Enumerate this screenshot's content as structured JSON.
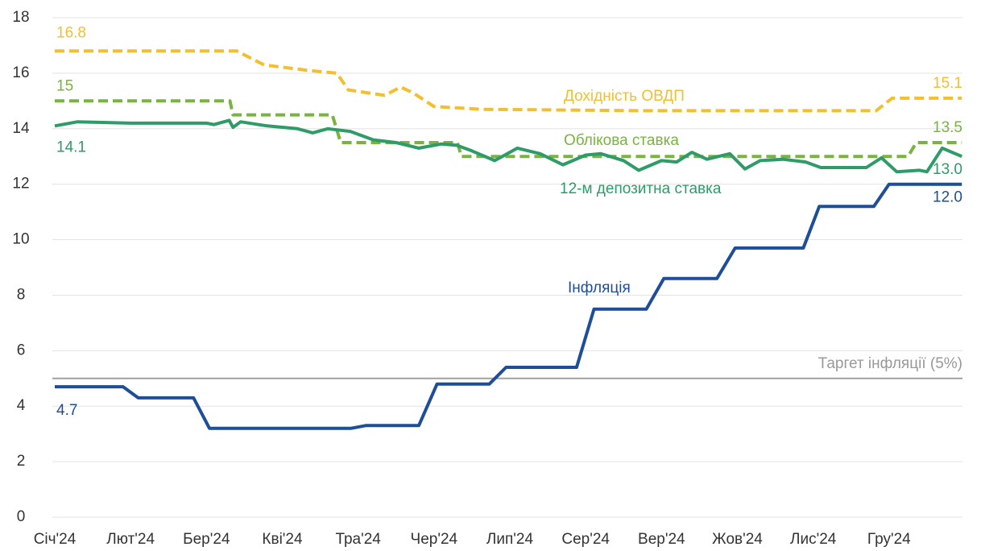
{
  "chart_data": {
    "type": "line",
    "xticks": [
      {
        "value": 0,
        "label": "Січ'24"
      },
      {
        "value": 1,
        "label": "Лют'24"
      },
      {
        "value": 2,
        "label": "Бер'24"
      },
      {
        "value": 3,
        "label": "Кві'24"
      },
      {
        "value": 4,
        "label": "Тра'24"
      },
      {
        "value": 5,
        "label": "Чер'24"
      },
      {
        "value": 6,
        "label": "Лип'24"
      },
      {
        "value": 7,
        "label": "Сер'24"
      },
      {
        "value": 8,
        "label": "Вер'24"
      },
      {
        "value": 9,
        "label": "Жов'24"
      },
      {
        "value": 10,
        "label": "Лис'24"
      },
      {
        "value": 11,
        "label": "Гру'24"
      }
    ],
    "xlim": [
      0,
      12
    ],
    "ylim": [
      0,
      18
    ],
    "yticks": [
      0,
      2,
      4,
      6,
      8,
      10,
      12,
      14,
      16,
      18
    ],
    "grid": true,
    "reference_line": {
      "label": "Таргет інфляції (5%)",
      "value": 5,
      "color": "#a0a0a0"
    },
    "series": [
      {
        "name": "Дохідність ОВДП",
        "color": "#f2bf30",
        "dash": true,
        "x": [
          0,
          2.4,
          2.76,
          3.34,
          3.72,
          3.87,
          4.35,
          4.56,
          4.72,
          5.0,
          5.63,
          7.75,
          10.83,
          11.04,
          11.96
        ],
        "values": [
          16.8,
          16.8,
          16.3,
          16.1,
          16.0,
          15.4,
          15.2,
          15.5,
          15.3,
          14.8,
          14.7,
          14.65,
          14.65,
          15.1,
          15.1
        ],
        "value_labels": [
          "16.8",
          null,
          null,
          null,
          null,
          null,
          null,
          null,
          null,
          null,
          null,
          null,
          null,
          null,
          "15.1"
        ]
      },
      {
        "name": "Облікова ставка",
        "color": "#7ab340",
        "dash": true,
        "x": [
          0,
          2.31,
          2.35,
          3.66,
          3.77,
          5.31,
          5.36,
          11.25,
          11.36,
          11.96
        ],
        "values": [
          15,
          15,
          14.5,
          14.5,
          13.5,
          13.5,
          13.0,
          13.0,
          13.5,
          13.5
        ],
        "value_labels": [
          "15",
          null,
          null,
          null,
          null,
          null,
          null,
          null,
          null,
          "13.5"
        ]
      },
      {
        "name": "12-м депозитна ставка",
        "color": "#2f9b68",
        "dash": false,
        "x": [
          0,
          0.3,
          1.0,
          2.0,
          2.1,
          2.3,
          2.35,
          2.45,
          2.8,
          3.2,
          3.4,
          3.6,
          3.9,
          4.2,
          4.5,
          4.8,
          5.1,
          5.3,
          5.5,
          5.8,
          6.1,
          6.4,
          6.7,
          7.0,
          7.2,
          7.5,
          7.7,
          8.0,
          8.2,
          8.4,
          8.6,
          8.9,
          9.1,
          9.3,
          9.6,
          9.9,
          10.1,
          10.5,
          10.7,
          10.9,
          11.1,
          11.4,
          11.5,
          11.7,
          11.96
        ],
        "values": [
          14.1,
          14.25,
          14.2,
          14.2,
          14.15,
          14.3,
          14.05,
          14.25,
          14.1,
          14.0,
          13.85,
          14.0,
          13.9,
          13.6,
          13.5,
          13.3,
          13.45,
          13.4,
          13.2,
          12.85,
          13.3,
          13.1,
          12.7,
          13.05,
          13.1,
          12.85,
          12.5,
          12.85,
          12.8,
          13.15,
          12.9,
          13.1,
          12.55,
          12.85,
          12.9,
          12.8,
          12.6,
          12.6,
          12.6,
          12.95,
          12.45,
          12.5,
          12.45,
          13.3,
          13.0
        ],
        "value_labels": [
          "14.1",
          null,
          null,
          null,
          null,
          null,
          null,
          null,
          null,
          null,
          null,
          null,
          null,
          null,
          null,
          null,
          null,
          null,
          null,
          null,
          null,
          null,
          null,
          null,
          null,
          null,
          null,
          null,
          null,
          null,
          null,
          null,
          null,
          null,
          null,
          null,
          null,
          null,
          null,
          null,
          null,
          null,
          null,
          null,
          "13.0"
        ]
      },
      {
        "name": "Інфляція",
        "color": "#1f4e99",
        "dash": false,
        "x": [
          0,
          0.9,
          1.1,
          1.83,
          2.04,
          3.9,
          4.1,
          4.8,
          5.04,
          5.73,
          5.95,
          6.88,
          7.11,
          7.8,
          8.03,
          8.73,
          8.97,
          9.87,
          10.08,
          10.8,
          11.0,
          11.96
        ],
        "values": [
          4.7,
          4.7,
          4.3,
          4.3,
          3.2,
          3.2,
          3.3,
          3.3,
          4.8,
          4.8,
          5.4,
          5.4,
          7.5,
          7.5,
          8.6,
          8.6,
          9.7,
          9.7,
          11.2,
          11.2,
          12.0,
          12.0
        ],
        "value_labels": [
          "4.7",
          null,
          null,
          null,
          null,
          null,
          null,
          null,
          null,
          null,
          null,
          null,
          null,
          null,
          null,
          null,
          null,
          null,
          null,
          null,
          null,
          "12.0"
        ]
      }
    ]
  }
}
